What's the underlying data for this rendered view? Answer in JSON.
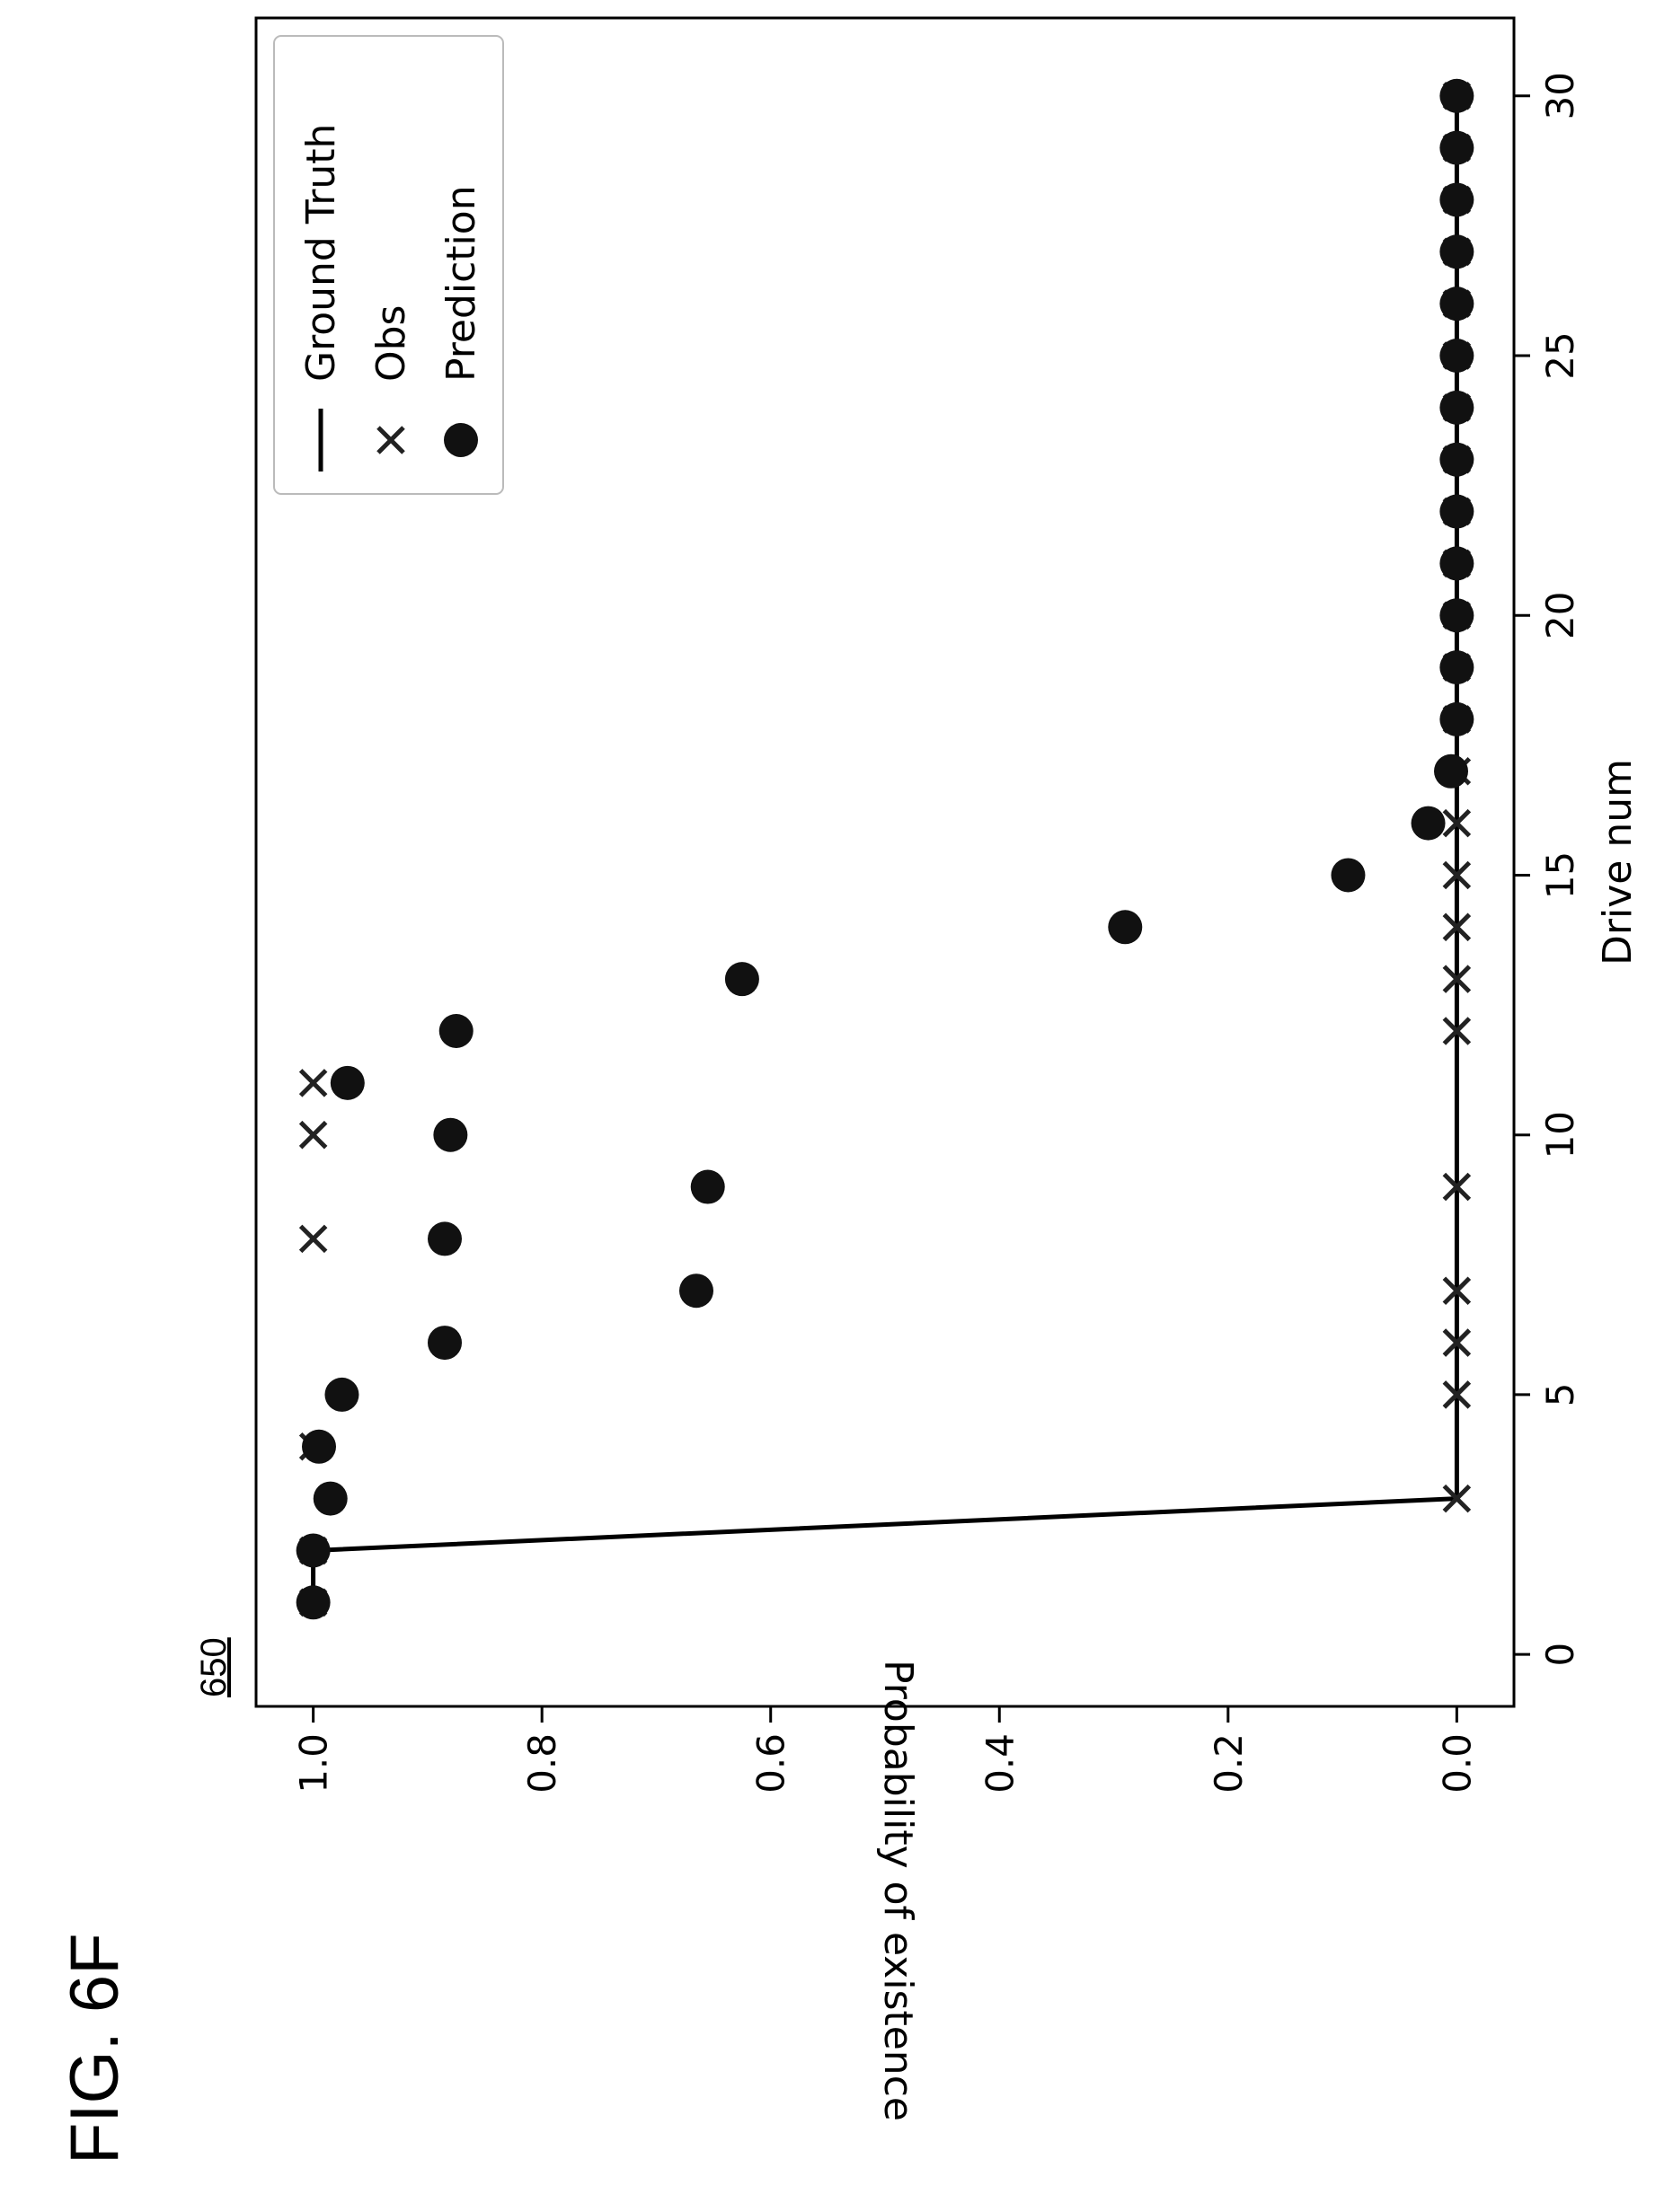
{
  "figure_label": "FIG. 6F",
  "reference_numeral": "650",
  "chart_data": {
    "type": "scatter",
    "orientation": "rotated 90° counter-clockwise on the page",
    "xlabel": "Drive num",
    "ylabel": "Probability of existence",
    "xlim": [
      -1,
      31.5
    ],
    "ylim": [
      -0.05,
      1.05
    ],
    "xticks": [
      "0",
      "5",
      "10",
      "15",
      "20",
      "25",
      "30"
    ],
    "yticks": [
      "0.0",
      "0.2",
      "0.4",
      "0.6",
      "0.8",
      "1.0"
    ],
    "grid": false,
    "legend": {
      "position": "top-right",
      "entries": [
        "Ground Truth",
        "Obs",
        "Prediction"
      ]
    },
    "series": [
      {
        "name": "Ground Truth",
        "style": "line",
        "x": [
          1,
          2,
          3,
          4,
          5,
          6,
          7,
          8,
          9,
          10,
          11,
          12,
          13,
          14,
          15,
          16,
          17,
          18,
          19,
          20,
          21,
          22,
          23,
          24,
          25,
          26,
          27,
          28,
          29,
          30
        ],
        "y": [
          1,
          1,
          0,
          0,
          0,
          0,
          0,
          0,
          0,
          0,
          0,
          0,
          0,
          0,
          0,
          0,
          0,
          0,
          0,
          0,
          0,
          0,
          0,
          0,
          0,
          0,
          0,
          0,
          0,
          0
        ]
      },
      {
        "name": "Obs",
        "style": "x-marker",
        "x": [
          1,
          2,
          3,
          4,
          5,
          6,
          7,
          8,
          9,
          10,
          11,
          12,
          13,
          14,
          15,
          16,
          17,
          18,
          19,
          20,
          21,
          22,
          23,
          24,
          25,
          26,
          27,
          28,
          29,
          30
        ],
        "y": [
          1,
          1,
          0,
          1,
          0,
          0,
          0,
          1,
          0,
          1,
          1,
          0,
          0,
          0,
          0,
          0,
          0,
          0,
          0,
          0,
          0,
          0,
          0,
          0,
          0,
          0,
          0,
          0,
          0,
          0
        ]
      },
      {
        "name": "Prediction",
        "style": "dot-marker",
        "x": [
          1,
          2,
          3,
          4,
          5,
          6,
          7,
          8,
          9,
          10,
          11,
          12,
          13,
          14,
          15,
          16,
          17,
          18,
          19,
          20,
          21,
          22,
          23,
          24,
          25,
          26,
          27,
          28,
          29,
          30
        ],
        "y": [
          1.0,
          1.0,
          0.985,
          0.995,
          0.975,
          0.885,
          0.665,
          0.885,
          0.655,
          0.88,
          0.97,
          0.875,
          0.625,
          0.29,
          0.095,
          0.025,
          0.005,
          0,
          0,
          0,
          0,
          0,
          0,
          0,
          0,
          0,
          0,
          0,
          0,
          0
        ]
      }
    ]
  }
}
